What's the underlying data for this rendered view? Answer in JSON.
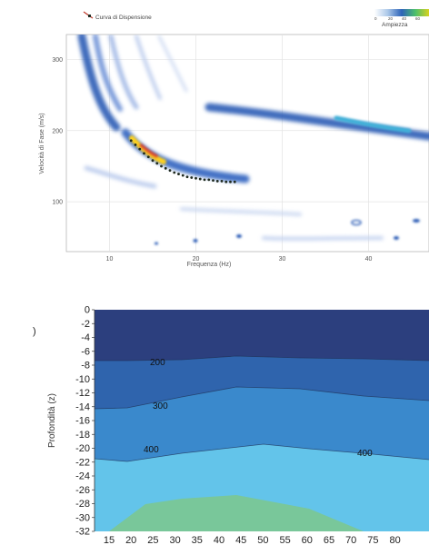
{
  "chart_data": [
    {
      "type": "heatmap",
      "title": "",
      "legend": {
        "marker_label": "Curva di Dispensione",
        "colorbar_title": "Ampiezza",
        "colorbar_ticks": [
          "0",
          "20",
          "40",
          "60"
        ],
        "placement": "top"
      },
      "xlabel": "Frequenza (Hz)",
      "ylabel": "Velocità di Fase (m/s)",
      "xlim": [
        5,
        47
      ],
      "ylim": [
        30,
        335
      ],
      "xticks": [
        10,
        20,
        30,
        40
      ],
      "yticks": [
        100,
        200,
        300
      ],
      "grid": true,
      "dispersion_curve": {
        "x": [
          12.5,
          13,
          13.5,
          14,
          14.5,
          15,
          15.5,
          16,
          16.5,
          17,
          17.5,
          18,
          18.5,
          19,
          19.5,
          20,
          20.5,
          21,
          21.5,
          22,
          22.5,
          23,
          23.5,
          24,
          24.5
        ],
        "y": [
          186,
          180,
          174,
          168,
          163,
          158,
          154,
          150,
          147,
          144,
          141,
          139,
          137,
          135,
          134,
          133,
          132,
          131,
          131,
          130,
          129,
          129,
          128,
          128,
          128
        ]
      },
      "colors": {
        "curve_point": "#1f2a1f",
        "curve_marker": "#d43c3c"
      }
    },
    {
      "type": "heatmap",
      "title": "",
      "panel_label": ")",
      "xlabel": "",
      "ylabel": "Profondità (z)",
      "x_ticks": [
        "15",
        "20",
        "25",
        "30",
        "35",
        "40",
        "45",
        "50",
        "55",
        "60",
        "65",
        "70",
        "75",
        "80"
      ],
      "y_ticks": [
        "0",
        "-2",
        "-4",
        "-6",
        "-8",
        "-10",
        "-12",
        "-14",
        "-16",
        "-18",
        "-20",
        "-22",
        "-24",
        "-26",
        "-28",
        "-30",
        "-32"
      ],
      "ylim": [
        -32,
        0
      ],
      "contour_labels": [
        "200",
        "300",
        "400",
        "400"
      ],
      "layers": [
        {
          "name": "< 200",
          "color": "#2c3f7e"
        },
        {
          "name": "200-300",
          "color": "#2f64ad"
        },
        {
          "name": "300-400",
          "color": "#3a89cc"
        },
        {
          "name": "400-500",
          "color": "#63c4ea"
        },
        {
          "name": "> 500",
          "color": "#79c79a"
        }
      ]
    }
  ]
}
